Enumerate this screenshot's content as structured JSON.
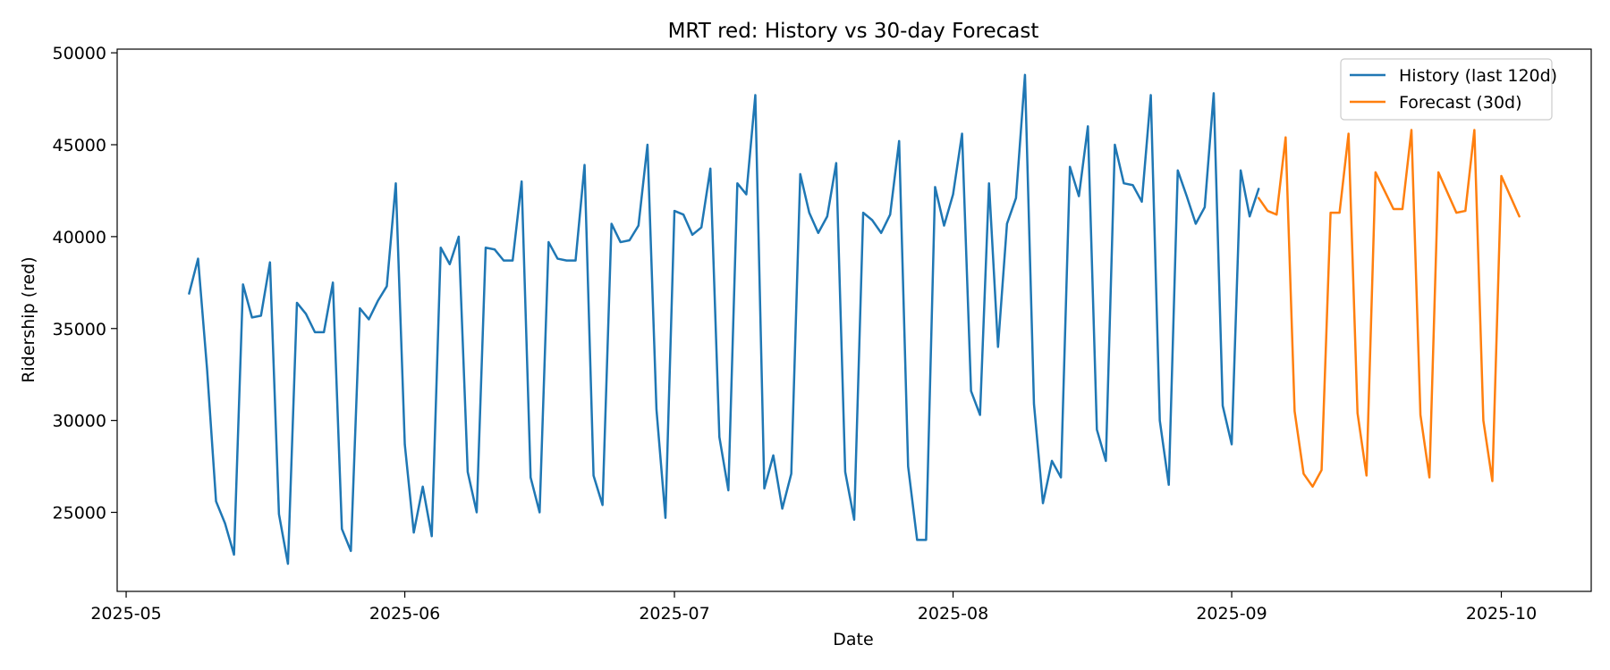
{
  "chart_data": {
    "type": "line",
    "title": "MRT red: History vs 30-day Forecast",
    "xlabel": "Date",
    "ylabel": "Ridership (red)",
    "x_ticks": [
      "2025-05",
      "2025-06",
      "2025-07",
      "2025-08",
      "2025-09",
      "2025-10"
    ],
    "y_ticks": [
      25000,
      30000,
      35000,
      40000,
      45000,
      50000
    ],
    "xlim": [
      "2025-04-30",
      "2025-10-11"
    ],
    "ylim": [
      20700,
      50200
    ],
    "grid": false,
    "legend_position": "top-right",
    "series": [
      {
        "name": "History (last 120d)",
        "color": "#1f77b4",
        "start_date": "2025-05-08",
        "values": [
          36900,
          38800,
          32800,
          25600,
          24400,
          22700,
          37400,
          35600,
          35700,
          38600,
          24900,
          22200,
          36400,
          35800,
          34800,
          34800,
          37500,
          24100,
          22900,
          36100,
          35500,
          36500,
          37300,
          42900,
          28700,
          23900,
          26400,
          23700,
          39400,
          38500,
          40000,
          27200,
          25000,
          39400,
          39300,
          38700,
          38700,
          43000,
          26900,
          25000,
          39700,
          38800,
          38700,
          38700,
          43900,
          27000,
          25400,
          40700,
          39700,
          39800,
          40600,
          45000,
          30600,
          24700,
          41400,
          41200,
          40100,
          40500,
          43700,
          29100,
          26200,
          42900,
          42300,
          47700,
          26300,
          28100,
          25200,
          27100,
          43400,
          41300,
          40200,
          41100,
          44000,
          27200,
          24600,
          41300,
          40900,
          40200,
          41200,
          45200,
          27500,
          23500,
          23500,
          42700,
          40600,
          42300,
          45600,
          31600,
          30300,
          42900,
          34000,
          40700,
          42100,
          48800,
          30900,
          25500,
          27800,
          26900,
          43800,
          42200,
          46000,
          29500,
          27800,
          45000,
          42900,
          42800,
          41900,
          47700,
          30000,
          26500,
          43600,
          42200,
          40700,
          41600,
          47800,
          30800,
          28700,
          43600,
          41100,
          42600
        ]
      },
      {
        "name": "Forecast (30d)",
        "color": "#ff7f0e",
        "start_date": "2025-09-04",
        "values": [
          42100,
          41400,
          41200,
          45400,
          30500,
          27100,
          26400,
          27300,
          41300,
          41300,
          45600,
          30400,
          27000,
          43500,
          42500,
          41500,
          41500,
          45800,
          30300,
          26900,
          43500,
          42400,
          41300,
          41400,
          45800,
          30000,
          26700,
          43300,
          42200,
          41100
        ]
      }
    ]
  }
}
